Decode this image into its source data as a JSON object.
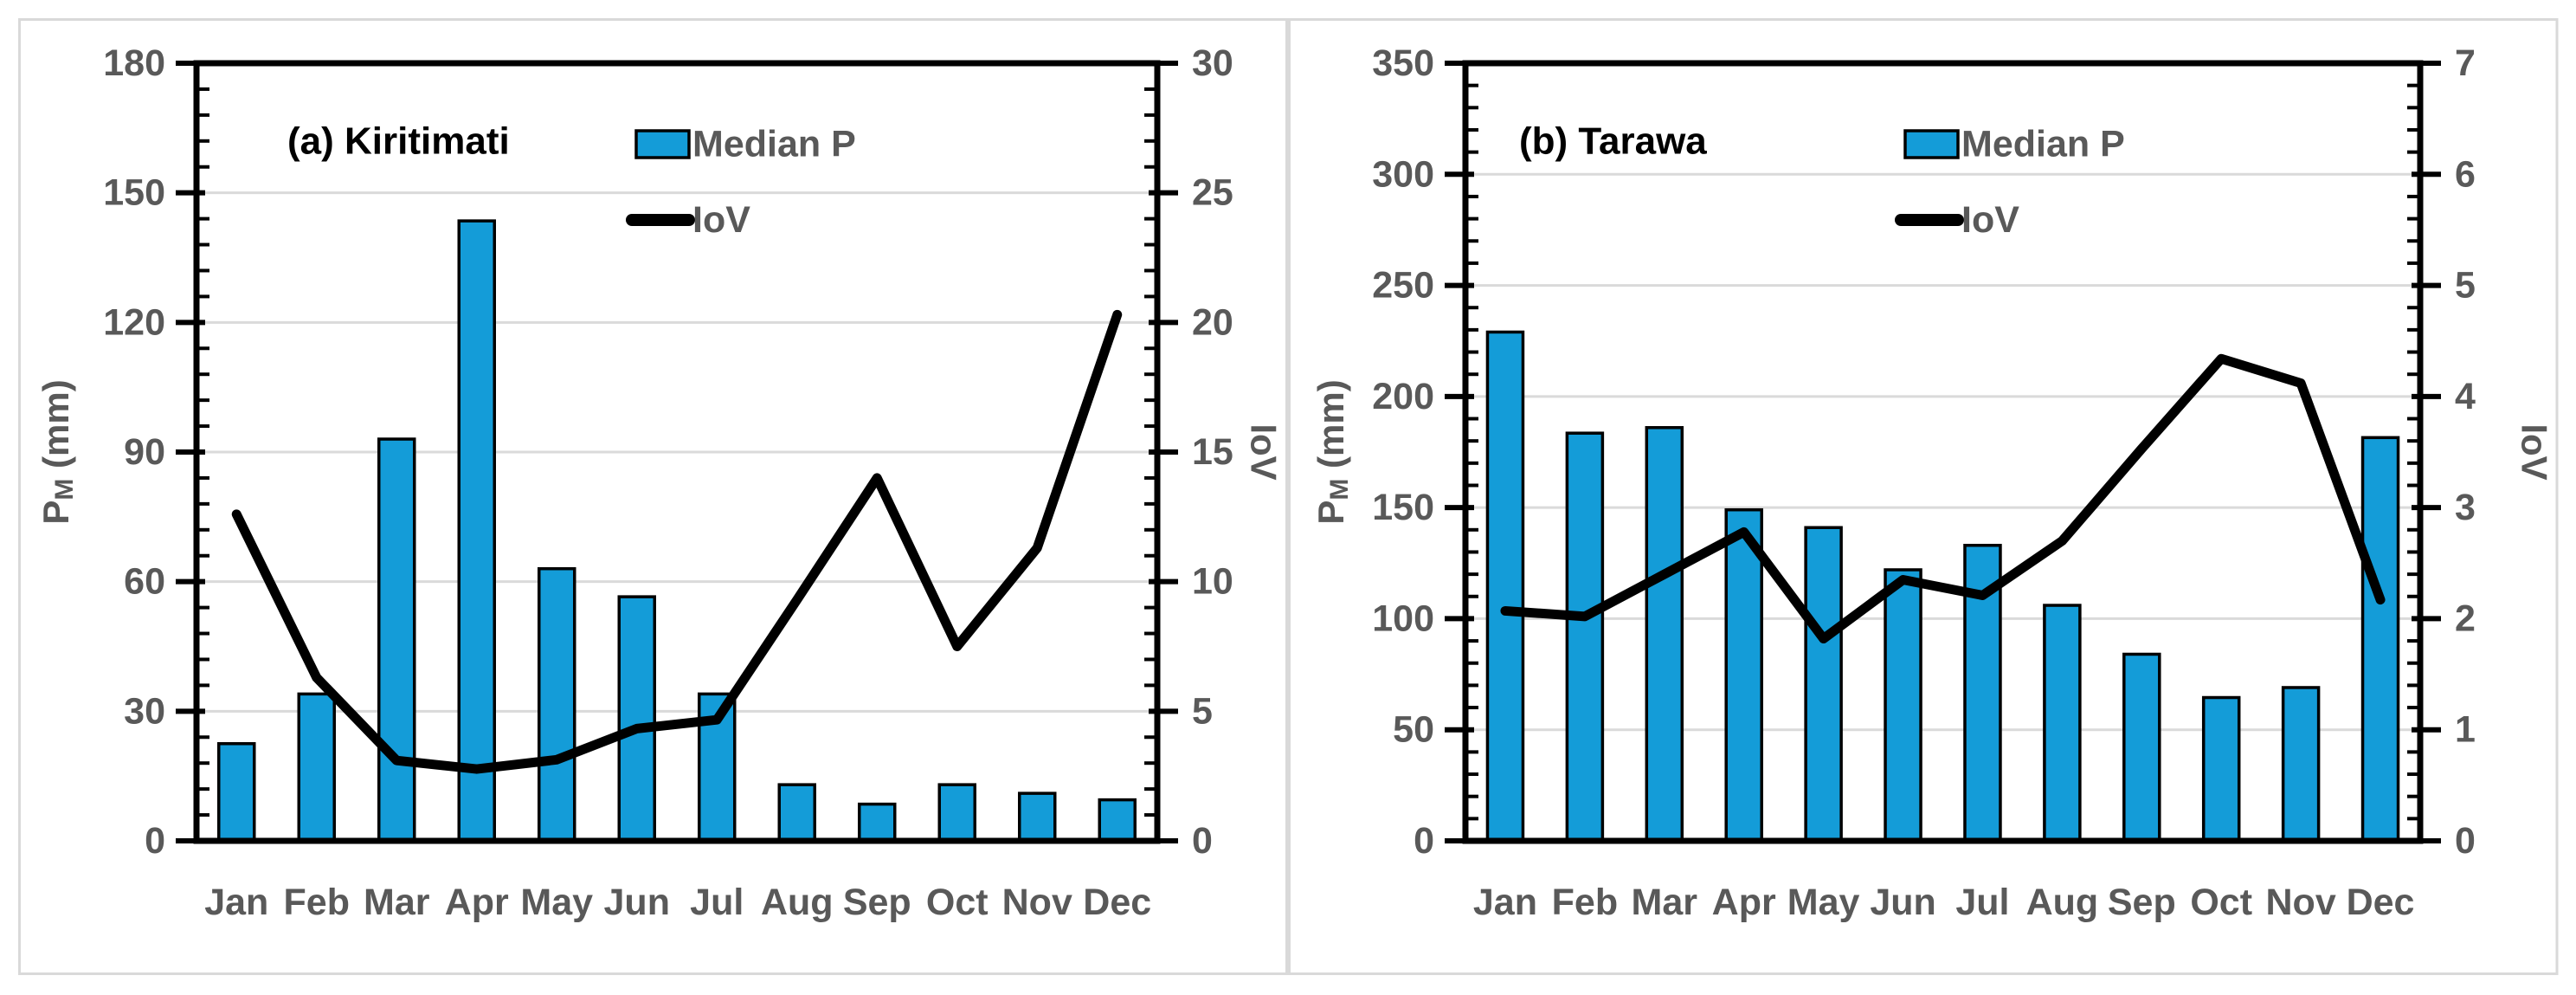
{
  "colors": {
    "background": "#FFFFFF",
    "panel_border": "#D9D9D9",
    "bar_fill": "#149CD8",
    "bar_outline": "#000000",
    "iov_line": "#000000",
    "gridline": "#DADADA",
    "axis": "#000000",
    "tick_label": "#595959",
    "axis_title": "#595959",
    "chart_title": "#000000",
    "legend_text": "#595959"
  },
  "legend": {
    "bar_label": "Median P",
    "line_label": "IoV"
  },
  "chart_data": [
    {
      "type": "bar+line",
      "title": "(a) Kiritimati",
      "categories": [
        "Jan",
        "Feb",
        "Mar",
        "Apr",
        "May",
        "Jun",
        "Jul",
        "Aug",
        "Sep",
        "Oct",
        "Nov",
        "Dec"
      ],
      "series": [
        {
          "name": "Median P",
          "type": "bar",
          "axis": "left",
          "values": [
            22.5,
            34,
            93,
            143.5,
            63,
            56.5,
            34,
            13,
            8.5,
            13,
            11,
            9.5
          ]
        },
        {
          "name": "IoV",
          "type": "line",
          "axis": "right",
          "values": [
            12.6,
            6.3,
            3.1,
            2.77,
            3.13,
            4.33,
            4.67,
            9.3,
            14.0,
            7.5,
            11.3,
            20.3
          ]
        }
      ],
      "left_axis": {
        "title_main": "P",
        "title_sub": "M",
        "title_suffix": " (mm)",
        "min": 0,
        "max": 180,
        "major_step": 30,
        "minor_step": 6,
        "tick_labels": [
          "0",
          "30",
          "60",
          "90",
          "120",
          "150",
          "180"
        ]
      },
      "right_axis": {
        "title": "IoV",
        "min": 0,
        "max": 30,
        "major_step": 5,
        "minor_step": 1,
        "tick_labels": [
          "0",
          "5",
          "10",
          "15",
          "20",
          "25",
          "30"
        ]
      },
      "grid": true,
      "legend_position": "inside-top-center"
    },
    {
      "type": "bar+line",
      "title": "(b) Tarawa",
      "categories": [
        "Jan",
        "Feb",
        "Mar",
        "Apr",
        "May",
        "Jun",
        "Jul",
        "Aug",
        "Sep",
        "Oct",
        "Nov",
        "Dec"
      ],
      "series": [
        {
          "name": "Median P",
          "type": "bar",
          "axis": "left",
          "values": [
            229,
            183.5,
            186,
            149,
            141,
            122,
            133,
            106,
            84,
            64.5,
            69,
            181.5
          ]
        },
        {
          "name": "IoV",
          "type": "line",
          "axis": "right",
          "values": [
            2.07,
            2.02,
            2.4,
            2.78,
            1.82,
            2.35,
            2.21,
            2.7,
            3.53,
            4.34,
            4.12,
            2.17
          ]
        }
      ],
      "left_axis": {
        "title_main": "P",
        "title_sub": "M",
        "title_suffix": " (mm)",
        "min": 0,
        "max": 350,
        "major_step": 50,
        "minor_step": 10,
        "tick_labels": [
          "0",
          "50",
          "100",
          "150",
          "200",
          "250",
          "300",
          "350"
        ]
      },
      "right_axis": {
        "title": "IoV",
        "min": 0,
        "max": 7,
        "major_step": 1,
        "minor_step": 0.2,
        "tick_labels": [
          "0",
          "1",
          "2",
          "3",
          "4",
          "5",
          "6",
          "7"
        ]
      },
      "grid": true,
      "legend_position": "inside-top-center"
    }
  ]
}
